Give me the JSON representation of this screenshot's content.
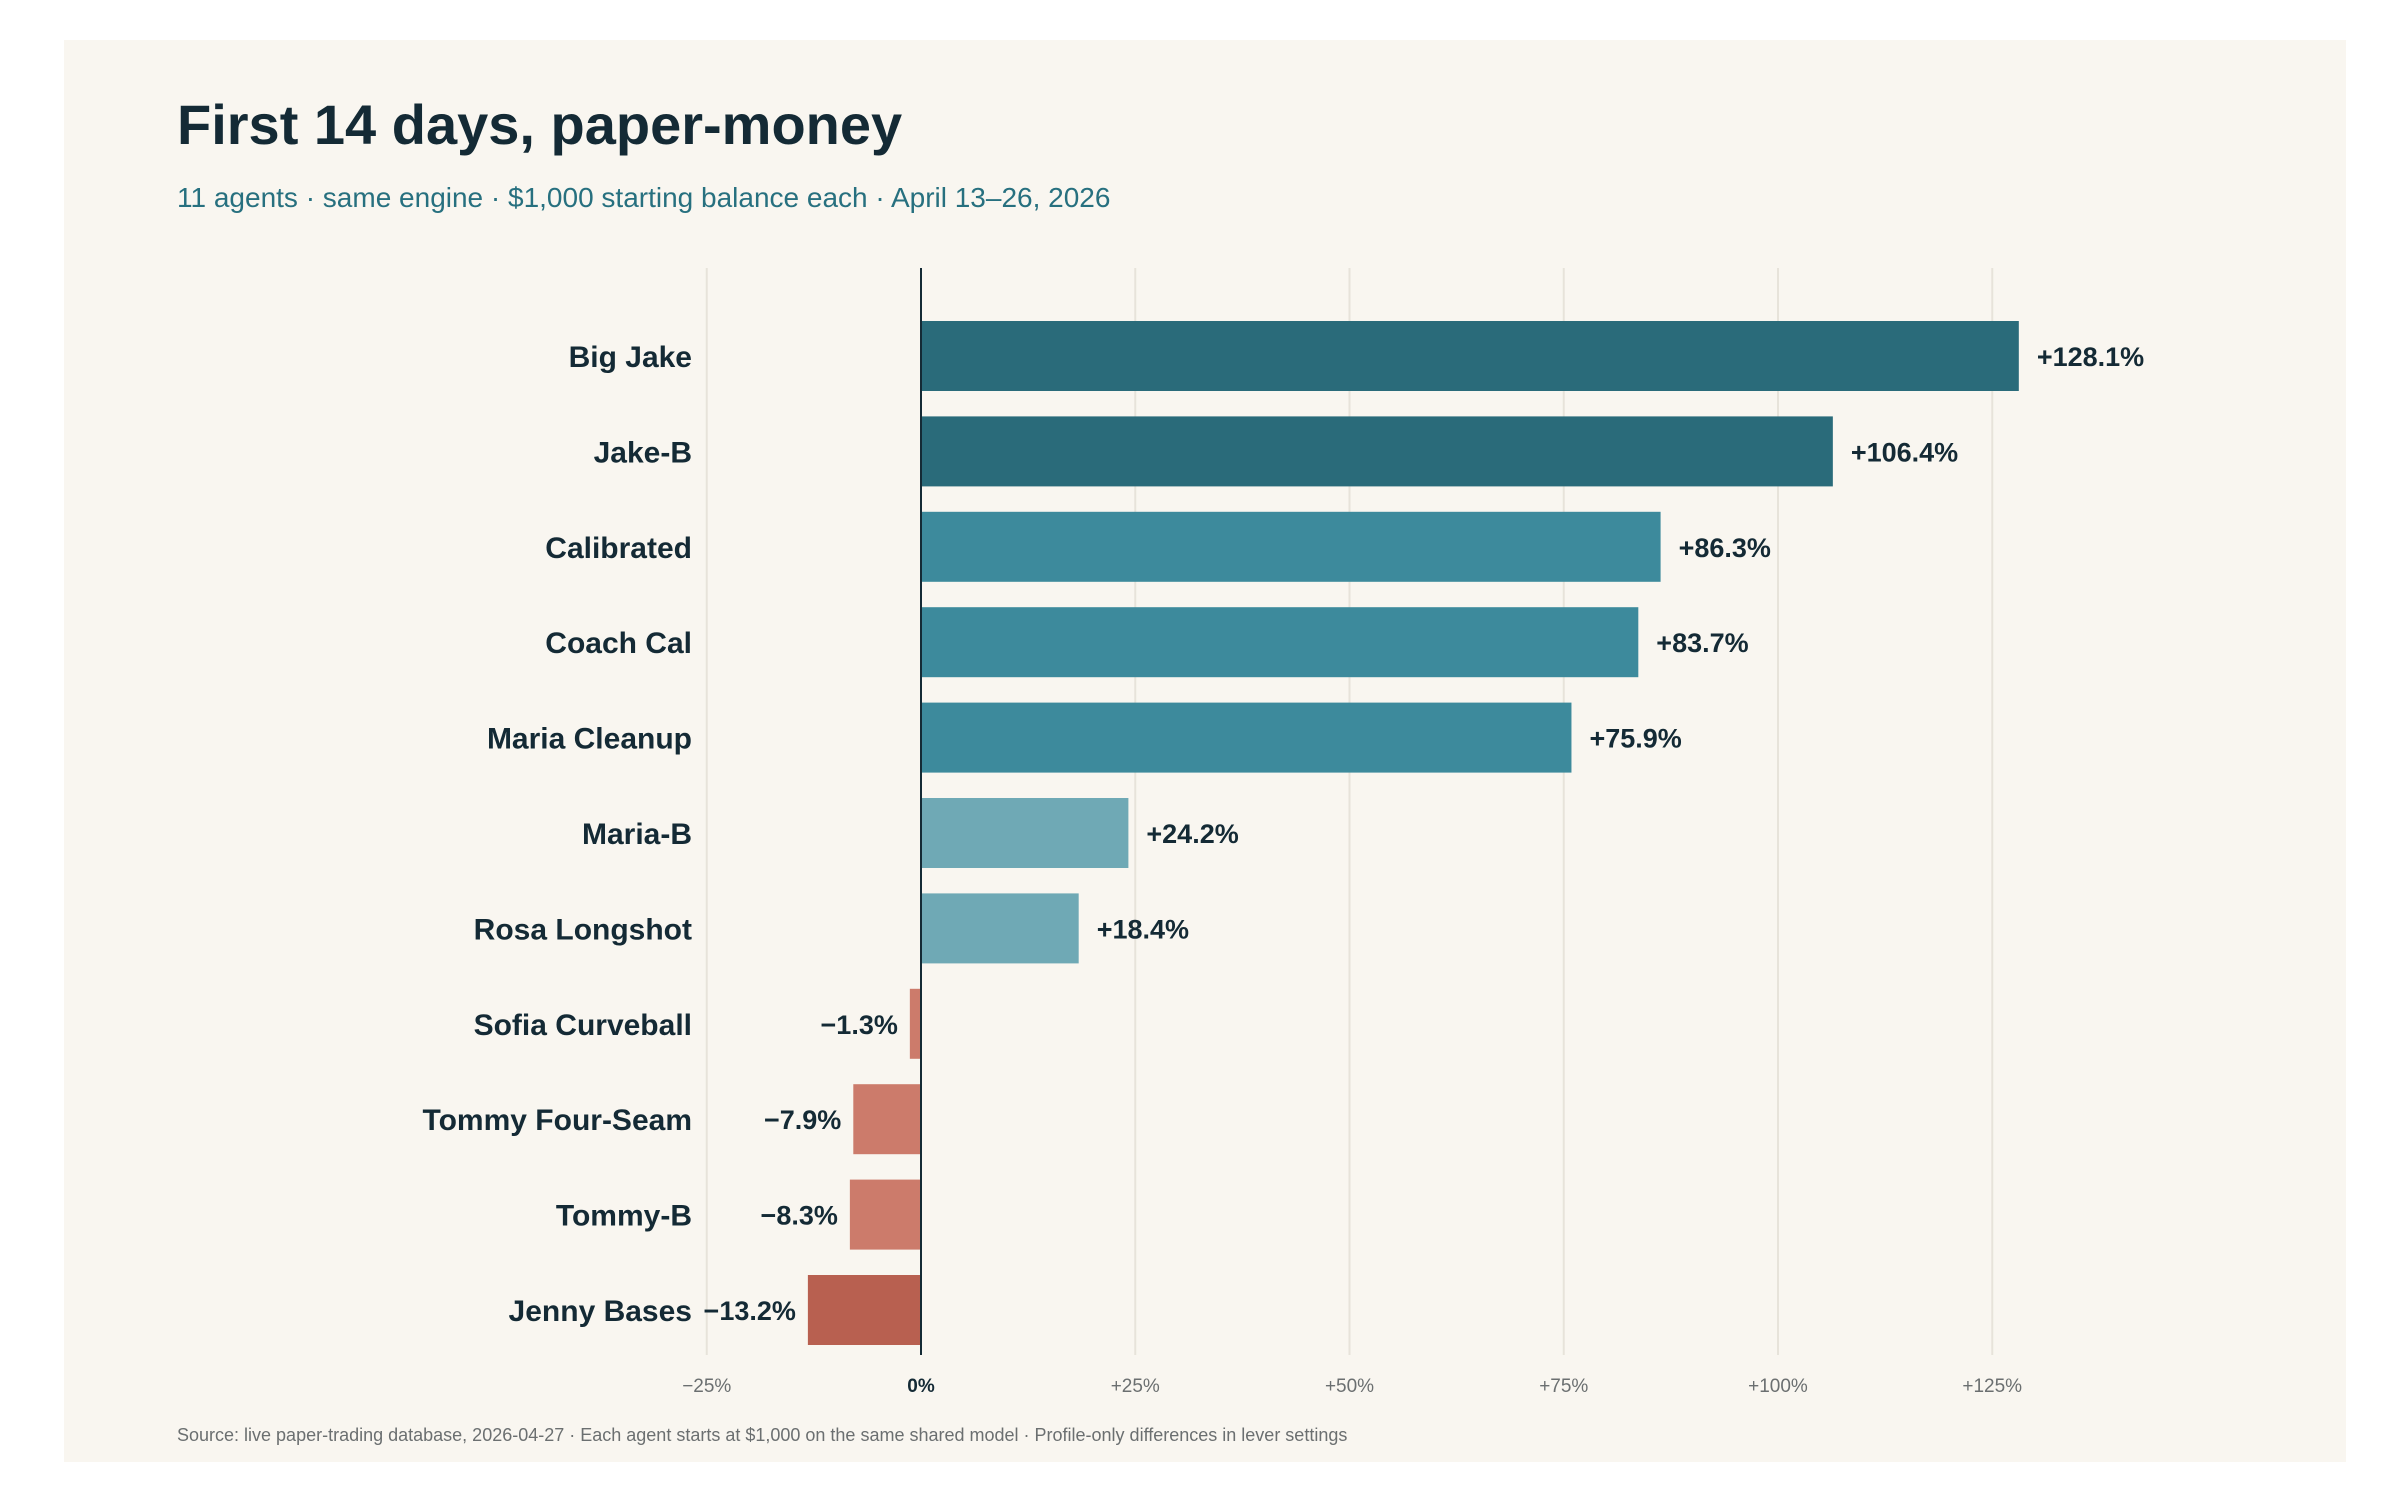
{
  "title": "First 14 days, paper-money",
  "subtitle": "11 agents · same engine · $1,000 starting balance each · April 13–26, 2026",
  "source": "Source: live paper-trading database, 2026-04-27 · Each agent starts at $1,000 on the same shared model · Profile-only differences in lever settings",
  "colors": {
    "background": "#f9f6f0",
    "gridline": "#e7e3da",
    "zero_line": "#142a35",
    "text_dark": "#142a35",
    "tick_text": "#6b6f70"
  },
  "chart_data": {
    "type": "bar",
    "orientation": "horizontal",
    "categories": [
      "Big Jake",
      "Jake-B",
      "Calibrated",
      "Coach Cal",
      "Maria Cleanup",
      "Maria-B",
      "Rosa Longshot",
      "Sofia Curveball",
      "Tommy Four-Seam",
      "Tommy-B",
      "Jenny Bases"
    ],
    "values": [
      128.1,
      106.4,
      86.3,
      83.7,
      75.9,
      24.2,
      18.4,
      -1.3,
      -7.9,
      -8.3,
      -13.2
    ],
    "value_labels": [
      "+128.1%",
      "+106.4%",
      "+86.3%",
      "+83.7%",
      "+75.9%",
      "+24.2%",
      "+18.4%",
      "−1.3%",
      "−7.9%",
      "−8.3%",
      "−13.2%"
    ],
    "bar_colors": [
      "#2a6b7a",
      "#2a6b7a",
      "#3d8a9c",
      "#3d8a9c",
      "#3d8a9c",
      "#6fa9b5",
      "#6fa9b5",
      "#cc7b6b",
      "#cc7b6b",
      "#cc7b6b",
      "#b86050"
    ],
    "xlim": [
      -25,
      140
    ],
    "x_ticks": [
      -25,
      0,
      25,
      50,
      75,
      100,
      125
    ],
    "x_tick_labels": [
      "−25%",
      "0%",
      "+25%",
      "+50%",
      "+75%",
      "+100%",
      "+125%"
    ],
    "grid": true,
    "xlabel": "",
    "ylabel": ""
  }
}
